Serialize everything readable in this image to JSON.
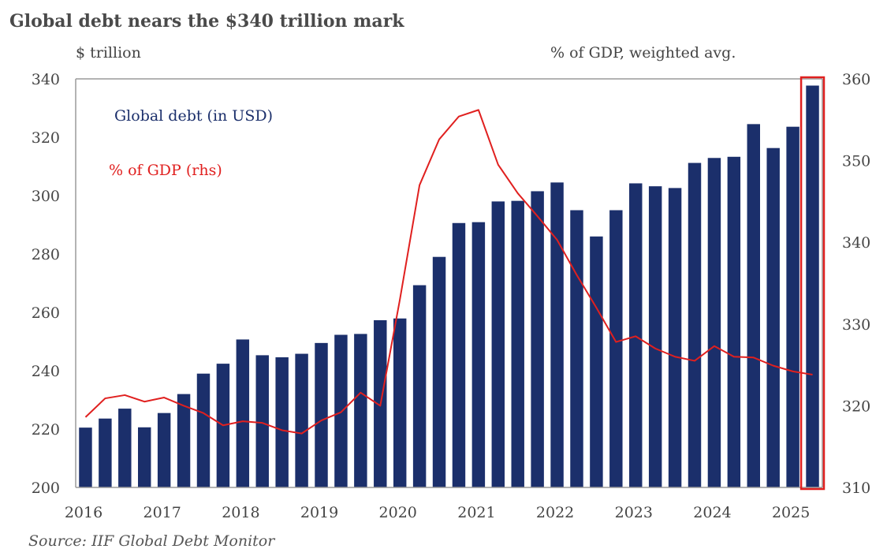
{
  "title": "Global debt nears the $340  trillion mark",
  "left_unit": "$ trillion",
  "right_unit": "% of GDP, weighted avg.",
  "source": "Source: IIF Global Debt Monitor",
  "colors": {
    "bar": "#1b2f6b",
    "line": "#e0201f",
    "highlight": "#e0201f",
    "axis": "#9a9a9a"
  },
  "chart_data": {
    "type": "bar",
    "title": "Global debt nears the $340  trillion mark",
    "ylabel": "$ trillion",
    "y2label": "% of GDP, weighted avg.",
    "ylim": [
      200,
      340
    ],
    "y2lim": [
      310,
      360
    ],
    "yticks": [
      200,
      220,
      240,
      260,
      280,
      300,
      320,
      340
    ],
    "y2ticks": [
      310,
      320,
      330,
      340,
      350,
      360
    ],
    "xticks": [
      "2016",
      "2017",
      "2018",
      "2019",
      "2020",
      "2021",
      "2022",
      "2023",
      "2024",
      "2025"
    ],
    "categories": [
      "Q1 2016",
      "Q2 2016",
      "Q3 2016",
      "Q4 2016",
      "Q1 2017",
      "Q2 2017",
      "Q3 2017",
      "Q4 2017",
      "Q1 2018",
      "Q2 2018",
      "Q3 2018",
      "Q4 2018",
      "Q1 2019",
      "Q2 2019",
      "Q3 2019",
      "Q4 2019",
      "Q1 2020",
      "Q2 2020",
      "Q3 2020",
      "Q4 2020",
      "Q1 2021",
      "Q2 2021",
      "Q3 2021",
      "Q4 2021",
      "Q1 2022",
      "Q2 2022",
      "Q3 2022",
      "Q4 2022",
      "Q1 2023",
      "Q2 2023",
      "Q3 2023",
      "Q4 2023",
      "Q1 2024",
      "Q2 2024",
      "Q3 2024",
      "Q4 2024",
      "Q1 2025",
      "Q2 2025"
    ],
    "series": [
      {
        "name": "Global debt (in USD)",
        "type": "bar",
        "axis": "left",
        "values": [
          220.5,
          223.6,
          227.0,
          220.6,
          225.5,
          232.0,
          239.0,
          242.4,
          250.7,
          245.3,
          244.6,
          245.8,
          249.5,
          252.3,
          252.6,
          257.3,
          257.9,
          269.3,
          279.0,
          290.6,
          290.9,
          298.0,
          298.2,
          301.5,
          304.5,
          295.0,
          286.0,
          295.0,
          304.2,
          303.2,
          302.6,
          311.2,
          312.9,
          313.3,
          324.5,
          316.3,
          323.6,
          337.7
        ]
      },
      {
        "name": "% of GDP (rhs)",
        "type": "line",
        "axis": "right",
        "values": [
          318.6,
          320.9,
          321.3,
          320.5,
          321.0,
          320.0,
          319.1,
          317.6,
          318.1,
          317.9,
          317.0,
          316.6,
          318.2,
          319.2,
          321.6,
          320.0,
          333.0,
          347.0,
          352.6,
          355.4,
          356.2,
          349.5,
          346.0,
          343.2,
          340.3,
          336.0,
          332.0,
          327.8,
          328.5,
          327.0,
          326.0,
          325.5,
          327.3,
          326.0,
          325.9,
          324.9,
          324.2,
          323.8
        ]
      }
    ],
    "grid": false,
    "legend": "top-left",
    "highlight": "last bar (Q2 2025)"
  }
}
